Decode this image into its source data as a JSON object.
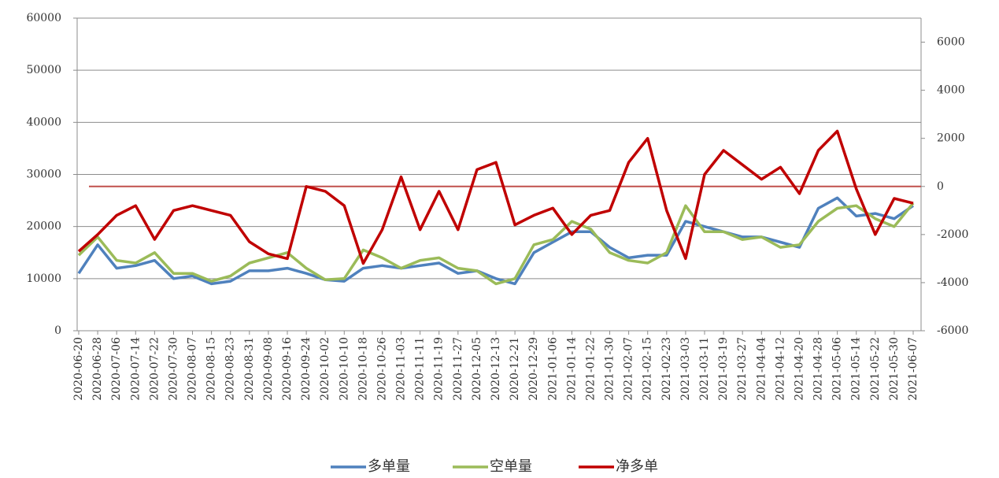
{
  "chart_data": {
    "type": "line",
    "categories": [
      "2020-06-20",
      "2020-06-28",
      "2020-07-06",
      "2020-07-14",
      "2020-07-22",
      "2020-07-30",
      "2020-08-07",
      "2020-08-15",
      "2020-08-23",
      "2020-08-31",
      "2020-09-08",
      "2020-09-16",
      "2020-09-24",
      "2020-10-02",
      "2020-10-10",
      "2020-10-18",
      "2020-10-26",
      "2020-11-03",
      "2020-11-11",
      "2020-11-19",
      "2020-11-27",
      "2020-12-05",
      "2020-12-13",
      "2020-12-21",
      "2020-12-29",
      "2021-01-06",
      "2021-01-14",
      "2021-01-22",
      "2021-01-30",
      "2021-02-07",
      "2021-02-15",
      "2021-02-23",
      "2021-03-03",
      "2021-03-11",
      "2021-03-19",
      "2021-03-27",
      "2021-04-04",
      "2021-04-12",
      "2021-04-20",
      "2021-04-28",
      "2021-05-06",
      "2021-05-14",
      "2021-05-22",
      "2021-05-30",
      "2021-06-07"
    ],
    "series": [
      {
        "name": "多单量",
        "color": "#4f81bd",
        "values": [
          11000,
          16500,
          12000,
          12500,
          13500,
          10000,
          10500,
          9000,
          9500,
          11500,
          11500,
          12000,
          11000,
          9800,
          9500,
          12000,
          12500,
          12000,
          12500,
          13000,
          11000,
          11500,
          10000,
          9000,
          15000,
          17000,
          19000,
          19000,
          16000,
          14000,
          14500,
          14500,
          21000,
          20000,
          19000,
          18000,
          18000,
          17000,
          16000,
          23500,
          25500,
          22000,
          22500,
          21500,
          24000
        ]
      },
      {
        "name": "空单量",
        "color": "#9bbb59",
        "values": [
          14500,
          18000,
          13500,
          13000,
          15000,
          11000,
          11000,
          9500,
          10500,
          13000,
          14000,
          15000,
          12000,
          9800,
          10000,
          15500,
          14000,
          12000,
          13500,
          14000,
          12000,
          11500,
          9000,
          10000,
          16500,
          17500,
          21000,
          19500,
          15000,
          13500,
          13000,
          15000,
          24000,
          19000,
          19000,
          17500,
          18000,
          16000,
          16500,
          21000,
          23500,
          24000,
          21500,
          20000,
          24500
        ]
      },
      {
        "name": "净多单",
        "color": "#c00000",
        "axis": "y2",
        "values": [
          -2700,
          -2000,
          -1200,
          -800,
          -2200,
          -1000,
          -800,
          -1000,
          -1200,
          -2300,
          -2800,
          -3000,
          0,
          -200,
          -800,
          -3200,
          -1800,
          400,
          -1800,
          -200,
          -1800,
          700,
          1000,
          -1600,
          -1200,
          -900,
          -2000,
          -1200,
          -1000,
          1000,
          2000,
          -1000,
          -3000,
          500,
          1500,
          900,
          300,
          800,
          -300,
          1500,
          2300,
          -100,
          -2000,
          -500,
          -700
        ]
      }
    ],
    "ylim": [
      0,
      60000
    ],
    "yticks": [
      0,
      10000,
      20000,
      30000,
      40000,
      50000,
      60000
    ],
    "y2lim": [
      -6000,
      7000
    ],
    "y2ticks": [
      -6000,
      -4000,
      -2000,
      0,
      2000,
      4000,
      6000
    ],
    "grid": true,
    "legend": "bottom"
  }
}
